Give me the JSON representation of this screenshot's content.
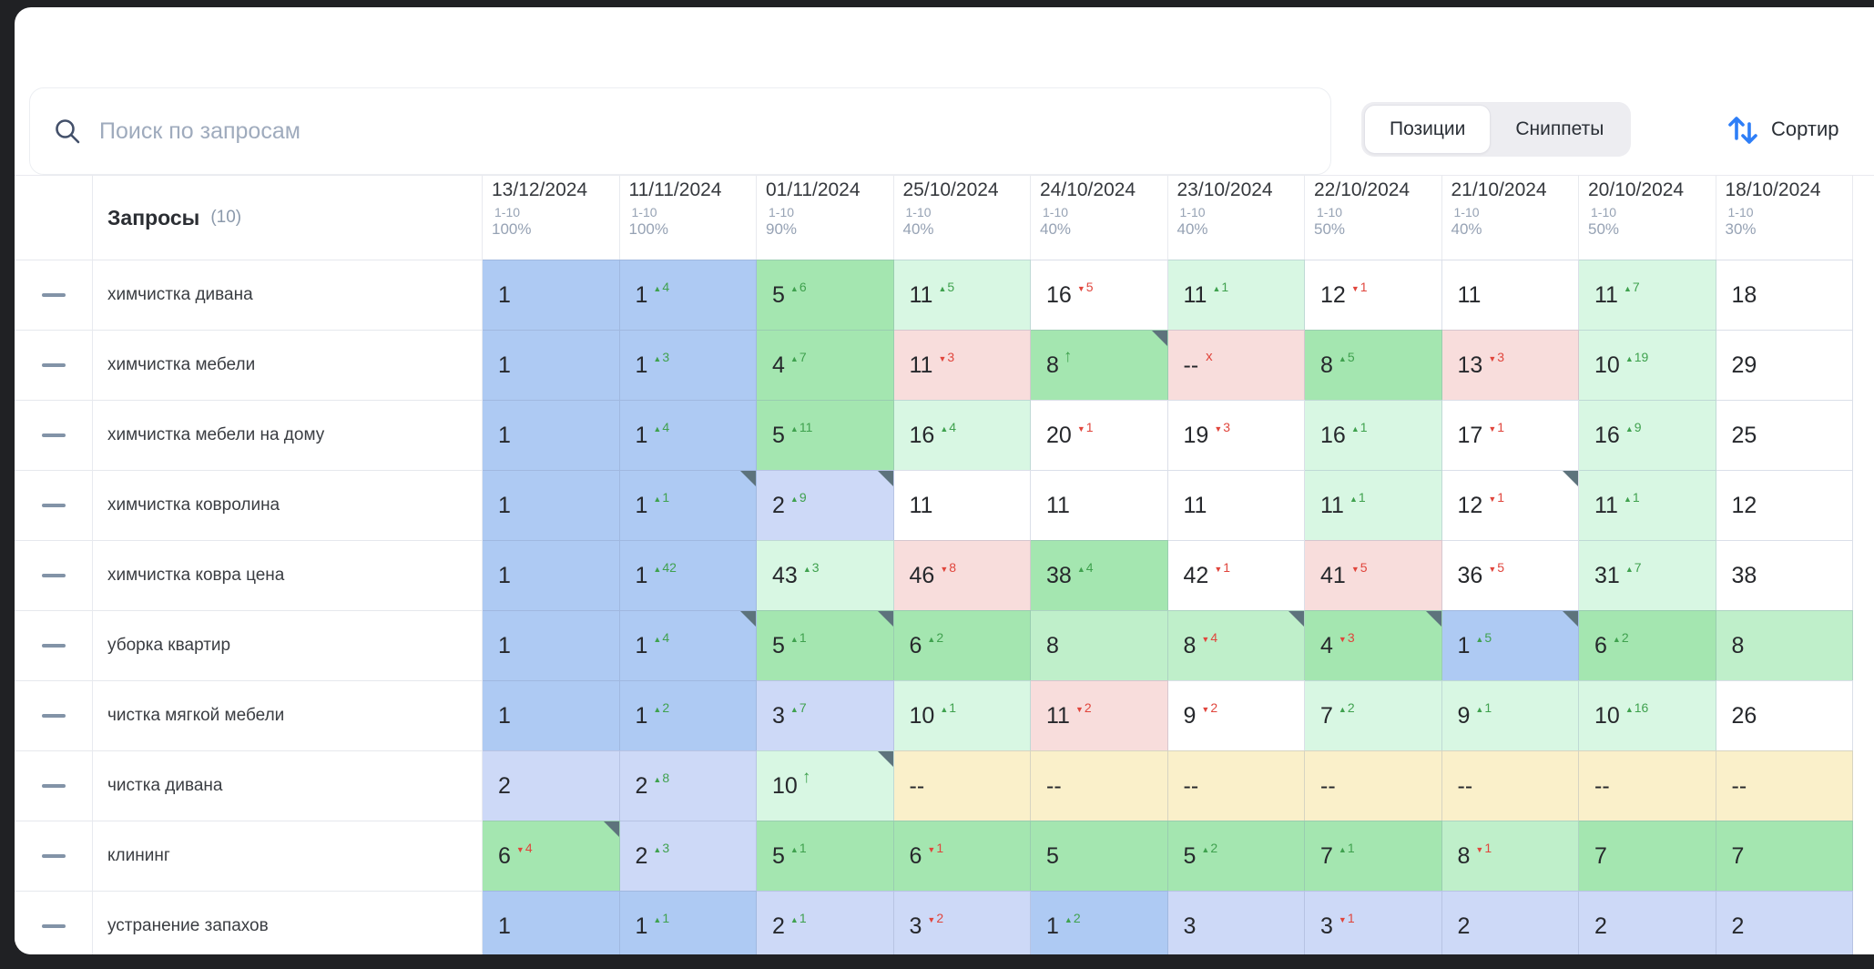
{
  "toolbar": {
    "search_placeholder": "Поиск по запросам",
    "positions_label": "Позиции",
    "snippets_label": "Сниппеты",
    "selected_tab": "Позиции",
    "sort_label": "Сортир",
    "sort_icon_color": "#2e7ef7"
  },
  "table": {
    "queries_header": "Запросы",
    "queries_count": "(10)",
    "columns": [
      {
        "date": "13/12/2024",
        "range": "1-10",
        "percent": "100%"
      },
      {
        "date": "11/11/2024",
        "range": "1-10",
        "percent": "100%"
      },
      {
        "date": "01/11/2024",
        "range": "1-10",
        "percent": "90%"
      },
      {
        "date": "25/10/2024",
        "range": "1-10",
        "percent": "40%"
      },
      {
        "date": "24/10/2024",
        "range": "1-10",
        "percent": "40%"
      },
      {
        "date": "23/10/2024",
        "range": "1-10",
        "percent": "40%"
      },
      {
        "date": "22/10/2024",
        "range": "1-10",
        "percent": "50%"
      },
      {
        "date": "21/10/2024",
        "range": "1-10",
        "percent": "40%"
      },
      {
        "date": "20/10/2024",
        "range": "1-10",
        "percent": "50%"
      },
      {
        "date": "18/10/2024",
        "range": "1-10",
        "percent": "30%"
      }
    ],
    "rows": [
      {
        "query": "химчистка дивана",
        "cells": [
          {
            "v": "1",
            "bg": "blue"
          },
          {
            "v": "1",
            "bg": "blue",
            "ind": {
              "t": "up",
              "n": "4"
            }
          },
          {
            "v": "5",
            "bg": "green",
            "ind": {
              "t": "up",
              "n": "6"
            }
          },
          {
            "v": "11",
            "bg": "mint",
            "ind": {
              "t": "up",
              "n": "5"
            }
          },
          {
            "v": "16",
            "bg": "white",
            "ind": {
              "t": "down",
              "n": "5"
            }
          },
          {
            "v": "11",
            "bg": "mint",
            "ind": {
              "t": "up",
              "n": "1"
            }
          },
          {
            "v": "12",
            "bg": "white",
            "ind": {
              "t": "down",
              "n": "1"
            }
          },
          {
            "v": "11",
            "bg": "white"
          },
          {
            "v": "11",
            "bg": "mint",
            "ind": {
              "t": "up",
              "n": "7"
            }
          },
          {
            "v": "18",
            "bg": "white"
          }
        ]
      },
      {
        "query": "химчистка мебели",
        "cells": [
          {
            "v": "1",
            "bg": "blue"
          },
          {
            "v": "1",
            "bg": "blue",
            "ind": {
              "t": "up",
              "n": "3"
            }
          },
          {
            "v": "4",
            "bg": "green",
            "ind": {
              "t": "up",
              "n": "7"
            }
          },
          {
            "v": "11",
            "bg": "pink",
            "ind": {
              "t": "down",
              "n": "3"
            }
          },
          {
            "v": "8",
            "bg": "green",
            "ind": {
              "t": "uparrow"
            },
            "corner": true
          },
          {
            "v": "--",
            "bg": "pink",
            "ind": {
              "t": "lost"
            }
          },
          {
            "v": "8",
            "bg": "green",
            "ind": {
              "t": "up",
              "n": "5"
            }
          },
          {
            "v": "13",
            "bg": "pink",
            "ind": {
              "t": "down",
              "n": "3"
            }
          },
          {
            "v": "10",
            "bg": "mint",
            "ind": {
              "t": "up",
              "n": "19"
            }
          },
          {
            "v": "29",
            "bg": "white"
          }
        ]
      },
      {
        "query": "химчистка мебели на дому",
        "cells": [
          {
            "v": "1",
            "bg": "blue"
          },
          {
            "v": "1",
            "bg": "blue",
            "ind": {
              "t": "up",
              "n": "4"
            }
          },
          {
            "v": "5",
            "bg": "green",
            "ind": {
              "t": "up",
              "n": "11"
            }
          },
          {
            "v": "16",
            "bg": "mint",
            "ind": {
              "t": "up",
              "n": "4"
            }
          },
          {
            "v": "20",
            "bg": "white",
            "ind": {
              "t": "down",
              "n": "1"
            }
          },
          {
            "v": "19",
            "bg": "white",
            "ind": {
              "t": "down",
              "n": "3"
            }
          },
          {
            "v": "16",
            "bg": "mint",
            "ind": {
              "t": "up",
              "n": "1"
            }
          },
          {
            "v": "17",
            "bg": "white",
            "ind": {
              "t": "down",
              "n": "1"
            }
          },
          {
            "v": "16",
            "bg": "mint",
            "ind": {
              "t": "up",
              "n": "9"
            }
          },
          {
            "v": "25",
            "bg": "white"
          }
        ]
      },
      {
        "query": "химчистка ковролина",
        "cells": [
          {
            "v": "1",
            "bg": "blue"
          },
          {
            "v": "1",
            "bg": "blue",
            "ind": {
              "t": "up",
              "n": "1"
            },
            "corner": true
          },
          {
            "v": "2",
            "bg": "lightblue",
            "ind": {
              "t": "up",
              "n": "9"
            },
            "corner": true
          },
          {
            "v": "11",
            "bg": "white"
          },
          {
            "v": "11",
            "bg": "white"
          },
          {
            "v": "11",
            "bg": "white"
          },
          {
            "v": "11",
            "bg": "mint",
            "ind": {
              "t": "up",
              "n": "1"
            }
          },
          {
            "v": "12",
            "bg": "white",
            "ind": {
              "t": "down",
              "n": "1"
            },
            "corner": true
          },
          {
            "v": "11",
            "bg": "mint",
            "ind": {
              "t": "up",
              "n": "1"
            }
          },
          {
            "v": "12",
            "bg": "white"
          }
        ]
      },
      {
        "query": "химчистка ковра цена",
        "cells": [
          {
            "v": "1",
            "bg": "blue"
          },
          {
            "v": "1",
            "bg": "blue",
            "ind": {
              "t": "up",
              "n": "42"
            }
          },
          {
            "v": "43",
            "bg": "mint",
            "ind": {
              "t": "up",
              "n": "3"
            }
          },
          {
            "v": "46",
            "bg": "pink",
            "ind": {
              "t": "down",
              "n": "8"
            }
          },
          {
            "v": "38",
            "bg": "green",
            "ind": {
              "t": "up",
              "n": "4"
            }
          },
          {
            "v": "42",
            "bg": "white",
            "ind": {
              "t": "down",
              "n": "1"
            }
          },
          {
            "v": "41",
            "bg": "pink",
            "ind": {
              "t": "down",
              "n": "5"
            }
          },
          {
            "v": "36",
            "bg": "white",
            "ind": {
              "t": "down",
              "n": "5"
            }
          },
          {
            "v": "31",
            "bg": "mint",
            "ind": {
              "t": "up",
              "n": "7"
            }
          },
          {
            "v": "38",
            "bg": "white"
          }
        ]
      },
      {
        "query": "уборка квартир",
        "cells": [
          {
            "v": "1",
            "bg": "blue"
          },
          {
            "v": "1",
            "bg": "blue",
            "ind": {
              "t": "up",
              "n": "4"
            },
            "corner": true
          },
          {
            "v": "5",
            "bg": "green",
            "ind": {
              "t": "up",
              "n": "1"
            },
            "corner": true
          },
          {
            "v": "6",
            "bg": "green",
            "ind": {
              "t": "up",
              "n": "2"
            }
          },
          {
            "v": "8",
            "bg": "greenlight"
          },
          {
            "v": "8",
            "bg": "greenlight",
            "ind": {
              "t": "down",
              "n": "4"
            },
            "corner": true
          },
          {
            "v": "4",
            "bg": "green",
            "ind": {
              "t": "down",
              "n": "3"
            },
            "corner": true
          },
          {
            "v": "1",
            "bg": "blue",
            "ind": {
              "t": "up",
              "n": "5"
            },
            "corner": true
          },
          {
            "v": "6",
            "bg": "green",
            "ind": {
              "t": "up",
              "n": "2"
            }
          },
          {
            "v": "8",
            "bg": "greenlight"
          }
        ]
      },
      {
        "query": "чистка мягкой мебели",
        "cells": [
          {
            "v": "1",
            "bg": "blue"
          },
          {
            "v": "1",
            "bg": "blue",
            "ind": {
              "t": "up",
              "n": "2"
            }
          },
          {
            "v": "3",
            "bg": "lightblue",
            "ind": {
              "t": "up",
              "n": "7"
            }
          },
          {
            "v": "10",
            "bg": "mint",
            "ind": {
              "t": "up",
              "n": "1"
            }
          },
          {
            "v": "11",
            "bg": "pink",
            "ind": {
              "t": "down",
              "n": "2"
            }
          },
          {
            "v": "9",
            "bg": "white",
            "ind": {
              "t": "down",
              "n": "2"
            }
          },
          {
            "v": "7",
            "bg": "mint",
            "ind": {
              "t": "up",
              "n": "2"
            }
          },
          {
            "v": "9",
            "bg": "mint",
            "ind": {
              "t": "up",
              "n": "1"
            }
          },
          {
            "v": "10",
            "bg": "mint",
            "ind": {
              "t": "up",
              "n": "16"
            }
          },
          {
            "v": "26",
            "bg": "white"
          }
        ]
      },
      {
        "query": "чистка дивана",
        "cells": [
          {
            "v": "2",
            "bg": "lightblue"
          },
          {
            "v": "2",
            "bg": "lightblue",
            "ind": {
              "t": "up",
              "n": "8"
            }
          },
          {
            "v": "10",
            "bg": "mint",
            "ind": {
              "t": "uparrow"
            },
            "corner": true
          },
          {
            "v": "--",
            "bg": "yellow"
          },
          {
            "v": "--",
            "bg": "yellow"
          },
          {
            "v": "--",
            "bg": "yellow"
          },
          {
            "v": "--",
            "bg": "yellow"
          },
          {
            "v": "--",
            "bg": "yellow"
          },
          {
            "v": "--",
            "bg": "yellow"
          },
          {
            "v": "--",
            "bg": "yellow"
          }
        ]
      },
      {
        "query": "клининг",
        "cells": [
          {
            "v": "6",
            "bg": "green",
            "ind": {
              "t": "down",
              "n": "4"
            },
            "corner": true
          },
          {
            "v": "2",
            "bg": "lightblue",
            "ind": {
              "t": "up",
              "n": "3"
            }
          },
          {
            "v": "5",
            "bg": "green",
            "ind": {
              "t": "up",
              "n": "1"
            }
          },
          {
            "v": "6",
            "bg": "green",
            "ind": {
              "t": "down",
              "n": "1"
            }
          },
          {
            "v": "5",
            "bg": "green"
          },
          {
            "v": "5",
            "bg": "green",
            "ind": {
              "t": "up",
              "n": "2"
            }
          },
          {
            "v": "7",
            "bg": "green",
            "ind": {
              "t": "up",
              "n": "1"
            }
          },
          {
            "v": "8",
            "bg": "greenlight",
            "ind": {
              "t": "down",
              "n": "1"
            }
          },
          {
            "v": "7",
            "bg": "green"
          },
          {
            "v": "7",
            "bg": "green"
          }
        ]
      },
      {
        "query": "устранение запахов",
        "cells": [
          {
            "v": "1",
            "bg": "blue"
          },
          {
            "v": "1",
            "bg": "blue",
            "ind": {
              "t": "up",
              "n": "1"
            }
          },
          {
            "v": "2",
            "bg": "lightblue",
            "ind": {
              "t": "up",
              "n": "1"
            }
          },
          {
            "v": "3",
            "bg": "lightblue",
            "ind": {
              "t": "down",
              "n": "2"
            }
          },
          {
            "v": "1",
            "bg": "blue",
            "ind": {
              "t": "up",
              "n": "2"
            }
          },
          {
            "v": "3",
            "bg": "lightblue"
          },
          {
            "v": "3",
            "bg": "lightblue",
            "ind": {
              "t": "down",
              "n": "1"
            }
          },
          {
            "v": "2",
            "bg": "lightblue"
          },
          {
            "v": "2",
            "bg": "lightblue"
          },
          {
            "v": "2",
            "bg": "lightblue"
          }
        ]
      }
    ]
  },
  "colors": {
    "position_1": "#aecaf3",
    "position_2_3": "#cdd9f7",
    "position_4_8": "#a4e6b0",
    "position_good": "#bfefca",
    "position_improved": "#d8f7e3",
    "position_dropped": "#f8dddc",
    "no_data": "#faf0ca",
    "up_indicator": "#3fa14e",
    "down_indicator": "#e0453c",
    "corner_marker": "#5d737c"
  }
}
